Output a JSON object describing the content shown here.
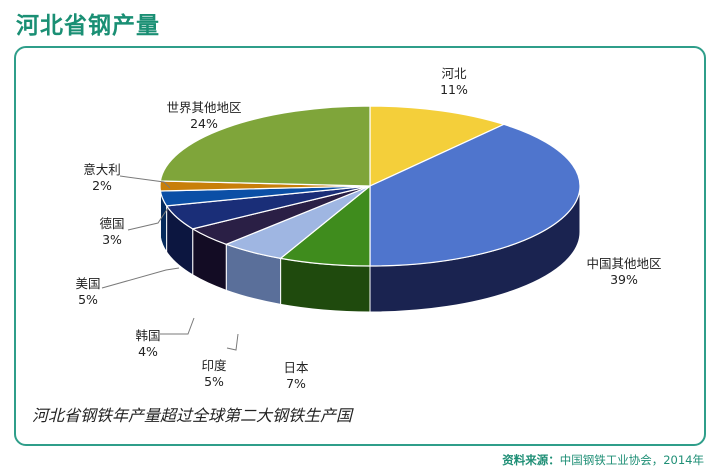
{
  "title": "河北省钢产量",
  "caption": "河北省钢铁年产量超过全球第二大钢铁生产国",
  "source": {
    "label": "资料来源：",
    "text": "中国钢铁工业协会，2014年"
  },
  "colors": {
    "title": "#1a8f74",
    "frame": "#2f9e8a"
  },
  "chart_data": {
    "type": "pie",
    "style": "3d",
    "slices": [
      {
        "label": "河北",
        "value": 11,
        "value_label": "11%",
        "color": "#f4cf3a",
        "side": "#a88a18"
      },
      {
        "label": "中国其他地区",
        "value": 39,
        "value_label": "39%",
        "color": "#4f75cd",
        "side": "#1a2350"
      },
      {
        "label": "日本",
        "value": 7,
        "value_label": "7%",
        "color": "#3f8c1d",
        "side": "#1f4a0d"
      },
      {
        "label": "印度",
        "value": 5,
        "value_label": "5%",
        "color": "#9fb6e2",
        "side": "#5a6f9a"
      },
      {
        "label": "韩国",
        "value": 4,
        "value_label": "4%",
        "color": "#2a1f45",
        "side": "#130c24"
      },
      {
        "label": "美国",
        "value": 5,
        "value_label": "5%",
        "color": "#1a2e78",
        "side": "#0c1640"
      },
      {
        "label": "德国",
        "value": 3,
        "value_label": "3%",
        "color": "#0b4fa6",
        "side": "#052a5c"
      },
      {
        "label": "意大利",
        "value": 2,
        "value_label": "2%",
        "color": "#c87f0a",
        "side": "#7a4a05"
      },
      {
        "label": "世界其他地区",
        "value": 24,
        "value_label": "24%",
        "color": "#7fa53a",
        "side": "#4b6620"
      }
    ]
  }
}
